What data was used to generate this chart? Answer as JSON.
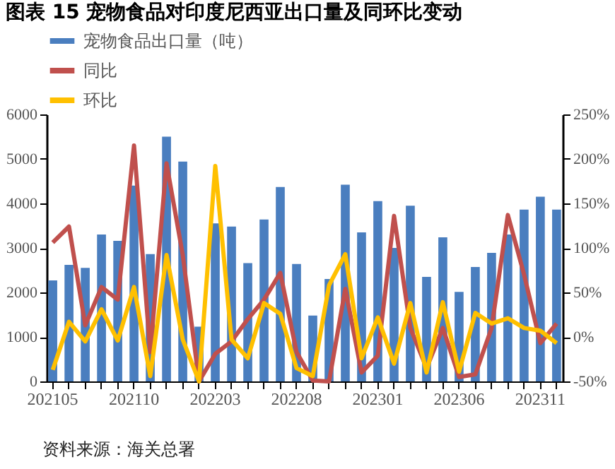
{
  "chart_data": {
    "type": "bar",
    "title": "图表 15 宠物食品对印度尼西亚出口量及同环比变动",
    "categories": [
      "202105",
      null,
      null,
      null,
      null,
      "202110",
      null,
      null,
      null,
      null,
      "202203",
      null,
      null,
      null,
      null,
      "202208",
      null,
      null,
      null,
      null,
      "202301",
      null,
      null,
      null,
      null,
      "202306",
      null,
      null,
      null,
      null,
      "202311",
      null
    ],
    "series": [
      {
        "name": "宠物食品出口量（吨）",
        "color": "#4a7ebf",
        "values": [
          2270,
          2620,
          2550,
          3300,
          3160,
          4400,
          2860,
          5500,
          4940,
          1230,
          3550,
          3480,
          2660,
          3640,
          4370,
          2640,
          1480,
          2300,
          4420,
          3350,
          4050,
          3000,
          3950,
          2350,
          3240,
          2010,
          2570,
          2890,
          3300,
          3860,
          4150,
          3860
        ]
      },
      {
        "name": "同比",
        "type": "line",
        "axis": "y2",
        "color": "#c0504d",
        "values": [
          106,
          124,
          13,
          56,
          42,
          215,
          -17,
          195,
          92,
          -50,
          -19,
          -5,
          20,
          42,
          72,
          -17,
          -49,
          -50,
          54,
          -40,
          -21,
          136,
          10,
          -35,
          10,
          -45,
          -42,
          10,
          137,
          70,
          -7,
          15
        ]
      },
      {
        "name": "环比",
        "type": "line",
        "axis": "y2",
        "color": "#ffc000",
        "values": [
          -37,
          17,
          -5,
          31,
          -4,
          56,
          -44,
          92,
          -3,
          -50,
          192,
          -3,
          -24,
          38,
          26,
          -35,
          -44,
          58,
          93,
          -24,
          22,
          -30,
          38,
          -40,
          39,
          -39,
          27,
          15,
          21,
          10,
          7,
          -7
        ]
      }
    ],
    "ylim": [
      0,
      6000
    ],
    "yticks": [
      0,
      1000,
      2000,
      3000,
      4000,
      5000,
      6000
    ],
    "y2lim": [
      -50,
      250
    ],
    "y2ticks": [
      {
        "value": -50,
        "label": "-50%"
      },
      {
        "value": 0,
        "label": "0%"
      },
      {
        "value": 50,
        "label": "50%"
      },
      {
        "value": 100,
        "label": "100%"
      },
      {
        "value": 150,
        "label": "150%"
      },
      {
        "value": 200,
        "label": "200%"
      },
      {
        "value": 250,
        "label": "250%"
      }
    ],
    "legend": "top",
    "annotations": [
      "资料来源：海关总署"
    ]
  }
}
